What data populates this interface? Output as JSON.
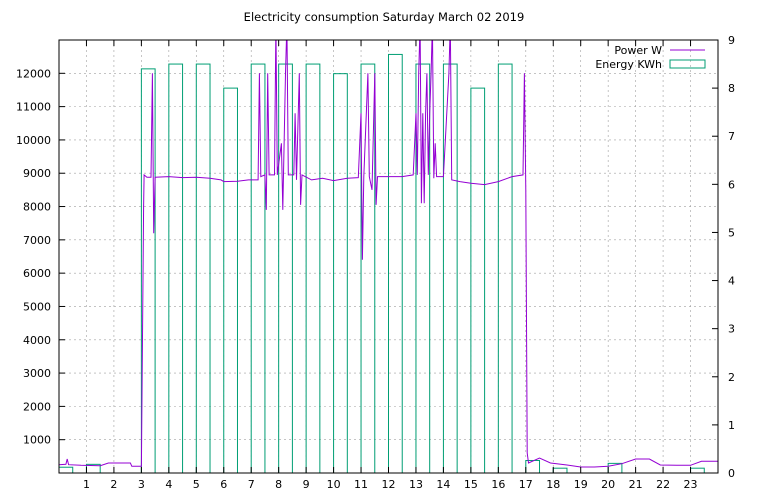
{
  "chart_data": {
    "type": "bar+line",
    "title": "Electricity consumption Saturday March 02 2019",
    "xlim": [
      0,
      24
    ],
    "x_ticks": [
      1,
      2,
      3,
      4,
      5,
      6,
      7,
      8,
      9,
      10,
      11,
      12,
      13,
      14,
      15,
      16,
      17,
      18,
      19,
      20,
      21,
      22,
      23
    ],
    "y_left": {
      "lim": [
        0,
        13000
      ],
      "ticks": [
        1000,
        2000,
        3000,
        4000,
        5000,
        6000,
        7000,
        8000,
        9000,
        10000,
        11000,
        12000
      ]
    },
    "y_right": {
      "lim": [
        0,
        9
      ],
      "ticks": [
        0,
        1,
        2,
        3,
        4,
        5,
        6,
        7,
        8,
        9
      ]
    },
    "grid": true,
    "legend_position": "top-right",
    "colors": {
      "power": "#9400d3",
      "energy": "#009e73"
    },
    "series": [
      {
        "name": "Energy KWh",
        "axis": "right",
        "kind": "bar",
        "bars": [
          {
            "hour": 0,
            "value": 0.12
          },
          {
            "hour": 1,
            "value": 0.18
          },
          {
            "hour": 3,
            "value": 8.4
          },
          {
            "hour": 4,
            "value": 8.5
          },
          {
            "hour": 5,
            "value": 8.5
          },
          {
            "hour": 6,
            "value": 8.0
          },
          {
            "hour": 7,
            "value": 8.5
          },
          {
            "hour": 8,
            "value": 8.5
          },
          {
            "hour": 9,
            "value": 8.5
          },
          {
            "hour": 10,
            "value": 8.3
          },
          {
            "hour": 11,
            "value": 8.5
          },
          {
            "hour": 12,
            "value": 8.7
          },
          {
            "hour": 13,
            "value": 8.5
          },
          {
            "hour": 14,
            "value": 8.5
          },
          {
            "hour": 15,
            "value": 8.0
          },
          {
            "hour": 16,
            "value": 8.5
          },
          {
            "hour": 17,
            "value": 0.26
          },
          {
            "hour": 18,
            "value": 0.1
          },
          {
            "hour": 20,
            "value": 0.2
          },
          {
            "hour": 23,
            "value": 0.1
          }
        ]
      },
      {
        "name": "Power W",
        "axis": "left",
        "kind": "line",
        "points": [
          [
            0,
            250
          ],
          [
            0.25,
            260
          ],
          [
            0.3,
            420
          ],
          [
            0.35,
            250
          ],
          [
            0.8,
            230
          ],
          [
            1.5,
            220
          ],
          [
            1.8,
            300
          ],
          [
            2.6,
            300
          ],
          [
            2.65,
            200
          ],
          [
            3.0,
            200
          ],
          [
            3.08,
            8000
          ],
          [
            3.1,
            8950
          ],
          [
            3.2,
            8880
          ],
          [
            3.35,
            8880
          ],
          [
            3.4,
            12000
          ],
          [
            3.45,
            7200
          ],
          [
            3.5,
            8880
          ],
          [
            4.0,
            8900
          ],
          [
            4.5,
            8870
          ],
          [
            5.0,
            8880
          ],
          [
            5.5,
            8850
          ],
          [
            5.9,
            8800
          ],
          [
            6.0,
            8750
          ],
          [
            6.5,
            8760
          ],
          [
            6.9,
            8800
          ],
          [
            7.1,
            8800
          ],
          [
            7.25,
            8800
          ],
          [
            7.3,
            12000
          ],
          [
            7.35,
            8900
          ],
          [
            7.5,
            8950
          ],
          [
            7.55,
            7900
          ],
          [
            7.6,
            12000
          ],
          [
            7.65,
            8950
          ],
          [
            7.85,
            8950
          ],
          [
            7.9,
            13500
          ],
          [
            7.95,
            8950
          ],
          [
            8.1,
            9900
          ],
          [
            8.15,
            7900
          ],
          [
            8.25,
            12000
          ],
          [
            8.3,
            13500
          ],
          [
            8.35,
            8950
          ],
          [
            8.55,
            8950
          ],
          [
            8.6,
            10800
          ],
          [
            8.65,
            8800
          ],
          [
            8.75,
            12000
          ],
          [
            8.8,
            8050
          ],
          [
            8.85,
            8950
          ],
          [
            9.2,
            8800
          ],
          [
            9.6,
            8850
          ],
          [
            10.0,
            8780
          ],
          [
            10.5,
            8850
          ],
          [
            10.9,
            8870
          ],
          [
            11.0,
            10800
          ],
          [
            11.05,
            6400
          ],
          [
            11.1,
            8900
          ],
          [
            11.25,
            12000
          ],
          [
            11.3,
            8900
          ],
          [
            11.4,
            8500
          ],
          [
            11.5,
            12000
          ],
          [
            11.55,
            8050
          ],
          [
            11.6,
            8900
          ],
          [
            12.0,
            8900
          ],
          [
            12.5,
            8900
          ],
          [
            12.9,
            8950
          ],
          [
            13.0,
            10800
          ],
          [
            13.05,
            8950
          ],
          [
            13.1,
            12000
          ],
          [
            13.15,
            13500
          ],
          [
            13.2,
            8100
          ],
          [
            13.25,
            10800
          ],
          [
            13.3,
            8100
          ],
          [
            13.35,
            10800
          ],
          [
            13.4,
            12000
          ],
          [
            13.45,
            8950
          ],
          [
            13.5,
            10800
          ],
          [
            13.55,
            12000
          ],
          [
            13.6,
            13500
          ],
          [
            13.65,
            8850
          ],
          [
            13.7,
            9900
          ],
          [
            13.75,
            8900
          ],
          [
            14.0,
            8900
          ],
          [
            14.2,
            12000
          ],
          [
            14.25,
            13500
          ],
          [
            14.3,
            8800
          ],
          [
            14.6,
            8750
          ],
          [
            15.0,
            8700
          ],
          [
            15.5,
            8660
          ],
          [
            16.0,
            8750
          ],
          [
            16.5,
            8900
          ],
          [
            16.9,
            8950
          ],
          [
            16.95,
            12000
          ],
          [
            17.0,
            8500
          ],
          [
            17.05,
            600
          ],
          [
            17.1,
            300
          ],
          [
            17.5,
            450
          ],
          [
            17.9,
            300
          ],
          [
            18.5,
            240
          ],
          [
            19.0,
            180
          ],
          [
            19.5,
            180
          ],
          [
            20.0,
            200
          ],
          [
            20.5,
            280
          ],
          [
            21.0,
            420
          ],
          [
            21.5,
            420
          ],
          [
            21.9,
            240
          ],
          [
            22.5,
            230
          ],
          [
            23.0,
            230
          ],
          [
            23.4,
            350
          ],
          [
            24.0,
            350
          ]
        ]
      }
    ]
  }
}
